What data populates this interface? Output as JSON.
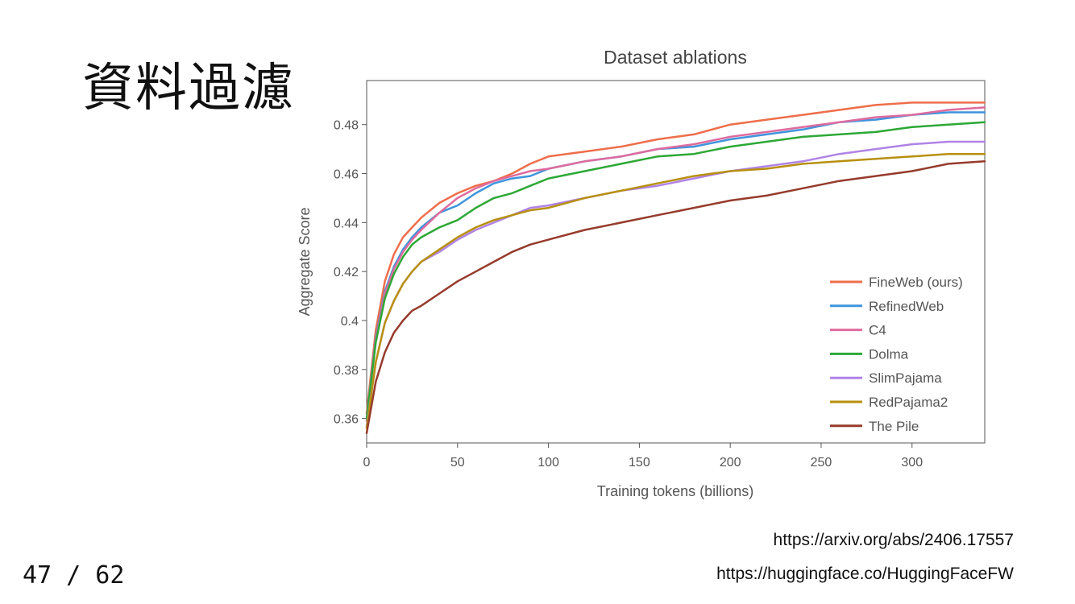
{
  "slide": {
    "title": "資料過濾",
    "references": [
      "https://arxiv.org/abs/2406.17557",
      "https://huggingface.co/HuggingFaceFW"
    ],
    "page_counter": "47 / 62"
  },
  "chart_data": {
    "type": "line",
    "title": "Dataset ablations",
    "xlabel": "Training tokens (billions)",
    "ylabel": "Aggregate Score",
    "xlim": [
      0,
      340
    ],
    "ylim": [
      0.35,
      0.498
    ],
    "xticks": [
      0,
      50,
      100,
      150,
      200,
      250,
      300
    ],
    "yticks": [
      0.36,
      0.38,
      0.4,
      0.42,
      0.44,
      0.46,
      0.48
    ],
    "ytick_labels": [
      "0.36",
      "0.38",
      "0.4",
      "0.42",
      "0.44",
      "0.46",
      "0.48"
    ],
    "grid": false,
    "legend_position": "bottom-right",
    "x": [
      0,
      5,
      10,
      15,
      20,
      25,
      30,
      40,
      50,
      60,
      70,
      80,
      90,
      100,
      120,
      140,
      160,
      180,
      200,
      220,
      240,
      260,
      280,
      300,
      320,
      340
    ],
    "series": [
      {
        "name": "FineWeb (ours)",
        "color": "#ee6e4a",
        "values": [
          0.362,
          0.396,
          0.416,
          0.427,
          0.434,
          0.438,
          0.442,
          0.448,
          0.452,
          0.455,
          0.457,
          0.46,
          0.464,
          0.467,
          0.469,
          0.471,
          0.474,
          0.476,
          0.48,
          0.482,
          0.484,
          0.486,
          0.488,
          0.489,
          0.489,
          0.489
        ]
      },
      {
        "name": "RefinedWeb",
        "color": "#3f94dc",
        "values": [
          0.36,
          0.393,
          0.412,
          0.422,
          0.429,
          0.434,
          0.438,
          0.444,
          0.447,
          0.452,
          0.456,
          0.458,
          0.459,
          0.462,
          0.465,
          0.467,
          0.47,
          0.471,
          0.474,
          0.476,
          0.478,
          0.481,
          0.482,
          0.484,
          0.485,
          0.485
        ]
      },
      {
        "name": "C4",
        "color": "#de6b9e",
        "values": [
          0.359,
          0.392,
          0.411,
          0.421,
          0.428,
          0.433,
          0.437,
          0.444,
          0.45,
          0.454,
          0.457,
          0.459,
          0.461,
          0.462,
          0.465,
          0.467,
          0.47,
          0.472,
          0.475,
          0.477,
          0.479,
          0.481,
          0.483,
          0.484,
          0.486,
          0.487
        ]
      },
      {
        "name": "Dolma",
        "color": "#2da836",
        "values": [
          0.36,
          0.391,
          0.409,
          0.419,
          0.426,
          0.431,
          0.434,
          0.438,
          0.441,
          0.446,
          0.45,
          0.452,
          0.455,
          0.458,
          0.461,
          0.464,
          0.467,
          0.468,
          0.471,
          0.473,
          0.475,
          0.476,
          0.477,
          0.479,
          0.48,
          0.481
        ]
      },
      {
        "name": "SlimPajama",
        "color": "#b083e6",
        "values": [
          0.357,
          0.383,
          0.399,
          0.408,
          0.415,
          0.42,
          0.424,
          0.428,
          0.433,
          0.437,
          0.44,
          0.443,
          0.446,
          0.447,
          0.45,
          0.453,
          0.455,
          0.458,
          0.461,
          0.463,
          0.465,
          0.468,
          0.47,
          0.472,
          0.473,
          0.473
        ]
      },
      {
        "name": "RedPajama2",
        "color": "#b8900f",
        "values": [
          0.356,
          0.383,
          0.399,
          0.408,
          0.415,
          0.42,
          0.424,
          0.429,
          0.434,
          0.438,
          0.441,
          0.443,
          0.445,
          0.446,
          0.45,
          0.453,
          0.456,
          0.459,
          0.461,
          0.462,
          0.464,
          0.465,
          0.466,
          0.467,
          0.468,
          0.468
        ]
      },
      {
        "name": "The Pile",
        "color": "#963b2c",
        "values": [
          0.354,
          0.375,
          0.387,
          0.395,
          0.4,
          0.404,
          0.406,
          0.411,
          0.416,
          0.42,
          0.424,
          0.428,
          0.431,
          0.433,
          0.437,
          0.44,
          0.443,
          0.446,
          0.449,
          0.451,
          0.454,
          0.457,
          0.459,
          0.461,
          0.464,
          0.465
        ]
      }
    ]
  }
}
